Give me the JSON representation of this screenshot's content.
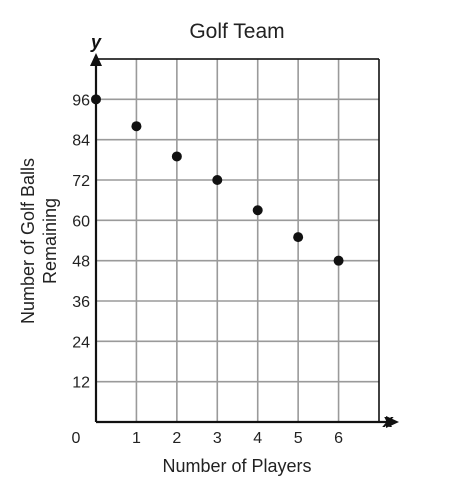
{
  "chart_data": {
    "type": "scatter",
    "title": "Golf Team",
    "xlabel": "Number of Players",
    "ylabel_lines": [
      "Number of Golf Balls",
      "Remaining"
    ],
    "x_axis_symbol": "x",
    "y_axis_symbol": "y",
    "origin_label": "0",
    "x_ticks": [
      1,
      2,
      3,
      4,
      5,
      6
    ],
    "y_ticks": [
      12,
      24,
      36,
      48,
      60,
      72,
      84,
      96
    ],
    "xlim": [
      0,
      7
    ],
    "ylim": [
      0,
      108
    ],
    "grid": true,
    "points": [
      {
        "x": 0,
        "y": 96
      },
      {
        "x": 1,
        "y": 88
      },
      {
        "x": 2,
        "y": 79
      },
      {
        "x": 3,
        "y": 72
      },
      {
        "x": 4,
        "y": 63
      },
      {
        "x": 5,
        "y": 55
      },
      {
        "x": 6,
        "y": 48
      }
    ],
    "colors": {
      "grid": "#9a9a9a",
      "axis": "#111111",
      "point": "#111111",
      "text": "#222222"
    }
  }
}
